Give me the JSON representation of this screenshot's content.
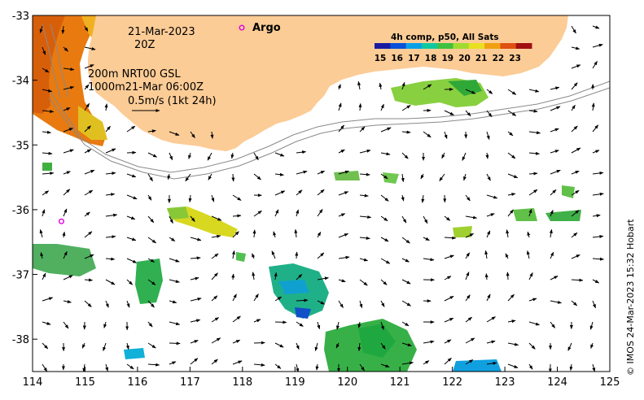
{
  "map": {
    "lon_range": [
      114,
      125
    ],
    "lat_range": [
      -38.5,
      -33
    ],
    "x_ticks": [
      "114",
      "115",
      "116",
      "117",
      "118",
      "119",
      "120",
      "121",
      "122",
      "123",
      "124",
      "125"
    ],
    "y_ticks": [
      "-33",
      "-34",
      "-35",
      "-36",
      "-37",
      "-38"
    ],
    "land_color": "#fccc96",
    "frame_color": "#000000"
  },
  "annotations": {
    "date_line": "21-Mar-2023",
    "time_line": "20Z",
    "isobath_line": "200m  NRT00 GSL",
    "depth_line": "1000m21-Mar 06:00Z",
    "scale_line": "0.5m/s (1kt 24h)"
  },
  "argo": {
    "legend_label": "Argo",
    "marker_color": "#e000e0",
    "floats": [
      {
        "lon": 114.55,
        "lat": -36.18
      }
    ]
  },
  "colorbar": {
    "title": "4h comp, p50, All Sats",
    "labels": [
      "15",
      "16",
      "17",
      "18",
      "19",
      "20",
      "21",
      "22",
      "23"
    ],
    "colors": [
      "#1a1aa0",
      "#0a50d8",
      "#0aa0e8",
      "#10c8a0",
      "#40c040",
      "#a0dc30",
      "#e8e020",
      "#f0a010",
      "#e05010",
      "#a01010"
    ]
  },
  "credit": "© IMOS 24-Mar-2023 15:32 Hobart"
}
